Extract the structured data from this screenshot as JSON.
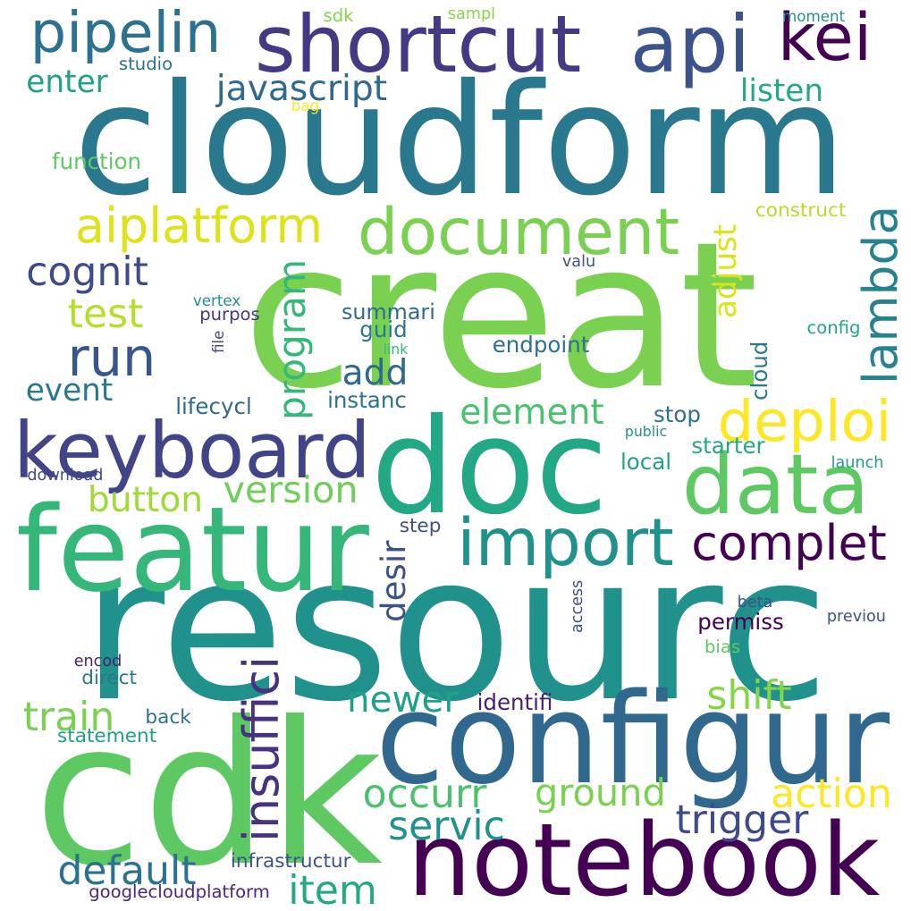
{
  "words": [
    {
      "text": "resourc",
      "color": "#21918c"
    },
    {
      "text": "creat",
      "color": "#7ad151"
    },
    {
      "text": "cloudform",
      "color": "#2a788e"
    },
    {
      "text": "cdk",
      "color": "#5ec962"
    },
    {
      "text": "notebook",
      "color": "#440154"
    },
    {
      "text": "doc",
      "color": "#22a884"
    },
    {
      "text": "configur",
      "color": "#31688e"
    },
    {
      "text": "featur",
      "color": "#35b779"
    },
    {
      "text": "shortcut",
      "color": "#443983"
    },
    {
      "text": "api",
      "color": "#3b528b"
    },
    {
      "text": "kei",
      "color": "#440154"
    },
    {
      "text": "keyboard",
      "color": "#414487"
    },
    {
      "text": "data",
      "color": "#5ec962"
    },
    {
      "text": "document",
      "color": "#7ad151"
    },
    {
      "text": "import",
      "color": "#21918c"
    },
    {
      "text": "deploi",
      "color": "#fde725"
    },
    {
      "text": "complet",
      "color": "#440154"
    },
    {
      "text": "pipelin",
      "color": "#2c728e"
    },
    {
      "text": "aiplatform",
      "color": "#dde318"
    },
    {
      "text": "lambda",
      "color": "#26828e"
    },
    {
      "text": "run",
      "color": "#39568c"
    },
    {
      "text": "insuffici",
      "color": "#46327e"
    },
    {
      "text": "program",
      "color": "#35b779"
    },
    {
      "text": "javascript",
      "color": "#31688e"
    },
    {
      "text": "occurr",
      "color": "#4ac16d"
    },
    {
      "text": "action",
      "color": "#fde725"
    },
    {
      "text": "default",
      "color": "#2c728e"
    },
    {
      "text": "trigger",
      "color": "#3e4a89"
    },
    {
      "text": "servic",
      "color": "#21918c"
    },
    {
      "text": "ground",
      "color": "#7ad151"
    },
    {
      "text": "item",
      "color": "#22a884"
    },
    {
      "text": "train",
      "color": "#7ad151"
    },
    {
      "text": "newer",
      "color": "#1fa187"
    },
    {
      "text": "shift",
      "color": "#86d549"
    },
    {
      "text": "version",
      "color": "#6ece58"
    },
    {
      "text": "button",
      "color": "#a0da39"
    },
    {
      "text": "element",
      "color": "#4ac16d"
    },
    {
      "text": "adjust",
      "color": "#dde318"
    },
    {
      "text": "desir",
      "color": "#3b528b"
    },
    {
      "text": "cognit",
      "color": "#3e4a89"
    },
    {
      "text": "test",
      "color": "#b5de2b"
    },
    {
      "text": "event",
      "color": "#2a788e"
    },
    {
      "text": "add",
      "color": "#31688e"
    },
    {
      "text": "enter",
      "color": "#1fa187"
    },
    {
      "text": "listen",
      "color": "#22a884"
    },
    {
      "text": "summari",
      "color": "#31688e"
    },
    {
      "text": "guid",
      "color": "#2a788e"
    },
    {
      "text": "endpoint",
      "color": "#2c728e"
    },
    {
      "text": "instanc",
      "color": "#2c728e"
    },
    {
      "text": "lifecycl",
      "color": "#31688e"
    },
    {
      "text": "stop",
      "color": "#2c728e"
    },
    {
      "text": "starter",
      "color": "#22a884"
    },
    {
      "text": "local",
      "color": "#1fa187"
    },
    {
      "text": "construct",
      "color": "#b5de2b"
    },
    {
      "text": "permiss",
      "color": "#440154"
    },
    {
      "text": "bias",
      "color": "#5ec962"
    },
    {
      "text": "identifi",
      "color": "#481f70"
    },
    {
      "text": "statement",
      "color": "#1fa187"
    },
    {
      "text": "back",
      "color": "#2c728e"
    },
    {
      "text": "direct",
      "color": "#2a788e"
    },
    {
      "text": "infrastructur",
      "color": "#3b528b"
    },
    {
      "text": "googlecloudplatform",
      "color": "#482878"
    },
    {
      "text": "function",
      "color": "#5ec962"
    },
    {
      "text": "studio",
      "color": "#2c728e"
    },
    {
      "text": "purpos",
      "color": "#443983"
    },
    {
      "text": "step",
      "color": "#3b528b"
    },
    {
      "text": "cloud",
      "color": "#2a788e"
    },
    {
      "text": "sdk",
      "color": "#86d549"
    },
    {
      "text": "sampl",
      "color": "#86d549"
    },
    {
      "text": "moment",
      "color": "#21918c"
    },
    {
      "text": "bag",
      "color": "#fde725"
    },
    {
      "text": "valu",
      "color": "#3b528b"
    },
    {
      "text": "vertex",
      "color": "#21918c"
    },
    {
      "text": "file",
      "color": "#3e4a89"
    },
    {
      "text": "link",
      "color": "#35b779"
    },
    {
      "text": "config",
      "color": "#22a884"
    },
    {
      "text": "public",
      "color": "#21918c"
    },
    {
      "text": "download",
      "color": "#3e4a89"
    },
    {
      "text": "launch",
      "color": "#1f9e89"
    },
    {
      "text": "access",
      "color": "#3b528b"
    },
    {
      "text": "beta",
      "color": "#3b528b"
    },
    {
      "text": "previou",
      "color": "#3b528b"
    },
    {
      "text": "encod",
      "color": "#481f70"
    }
  ]
}
